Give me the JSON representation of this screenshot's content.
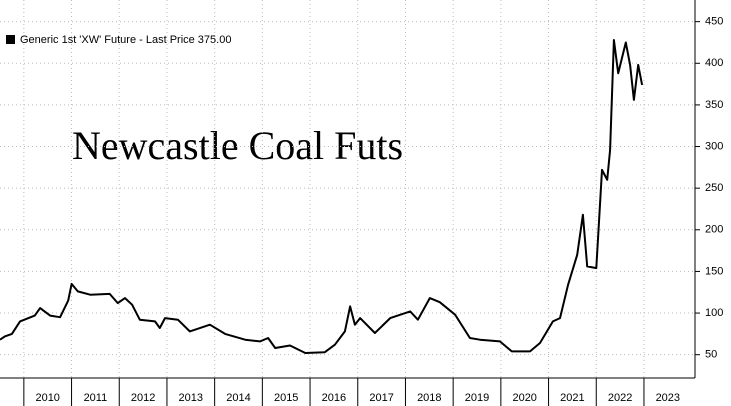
{
  "chart_data": {
    "type": "line",
    "title": "Newcastle Coal Futs",
    "series": [
      {
        "name": "Generic 1st 'XW' Future - Last Price 375.00",
        "color": "#000000",
        "x": [
          2009.5,
          2009.6,
          2009.75,
          2009.92,
          2010.23,
          2010.34,
          2010.55,
          2010.76,
          2010.93,
          2011.0,
          2011.13,
          2011.39,
          2011.8,
          2011.97,
          2012.12,
          2012.27,
          2012.43,
          2012.75,
          2012.85,
          2012.96,
          2013.23,
          2013.48,
          2013.9,
          2014.22,
          2014.64,
          2014.95,
          2015.12,
          2015.27,
          2015.58,
          2015.9,
          2016.31,
          2016.52,
          2016.73,
          2016.84,
          2016.94,
          2017.05,
          2017.36,
          2017.68,
          2018.1,
          2018.26,
          2018.51,
          2018.72,
          2019.04,
          2019.35,
          2019.56,
          2019.98,
          2020.23,
          2020.61,
          2020.82,
          2021.09,
          2021.24,
          2021.41,
          2021.6,
          2021.72,
          2021.81,
          2022.0,
          2022.12,
          2022.23,
          2022.29,
          2022.37,
          2022.46,
          2022.62,
          2022.71,
          2022.79,
          2022.88,
          2022.96
        ],
        "values": [
          68,
          72,
          75,
          90,
          97,
          106,
          97,
          95,
          115,
          135,
          126,
          122,
          123,
          112,
          118,
          110,
          92,
          90,
          82,
          94,
          92,
          78,
          86,
          75,
          68,
          66,
          70,
          58,
          61,
          52,
          53,
          62,
          78,
          108,
          86,
          94,
          76,
          94,
          102,
          92,
          118,
          113,
          98,
          70,
          68,
          66,
          54,
          54,
          64,
          90,
          94,
          134,
          170,
          218,
          156,
          154,
          272,
          260,
          296,
          428,
          388,
          425,
          398,
          356,
          398,
          374
        ]
      }
    ],
    "xlim": [
      2009.5,
      2024.07
    ],
    "xticks": [
      2010,
      2011,
      2012,
      2013,
      2014,
      2015,
      2016,
      2017,
      2018,
      2019,
      2020,
      2021,
      2022,
      2023
    ],
    "ylim": [
      22,
      476
    ],
    "yticks": [
      50,
      100,
      150,
      200,
      250,
      300,
      350,
      400,
      450
    ],
    "grid": true
  }
}
